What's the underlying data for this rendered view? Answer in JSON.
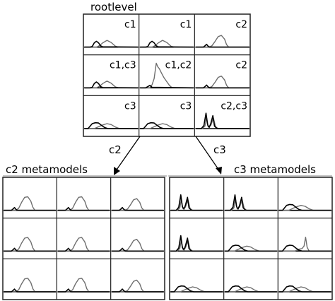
{
  "root": {
    "title": "rootlevel",
    "cells": [
      {
        "label": "c1",
        "dark": "smallBump",
        "light": "broadHump"
      },
      {
        "label": "c1",
        "dark": "smallBump",
        "light": "broadHump"
      },
      {
        "label": "c2",
        "dark": "tinyBump",
        "light": "tallHump"
      },
      {
        "label": "c1,c3",
        "dark": "smallBump",
        "light": "broadHump"
      },
      {
        "label": "c1,c2",
        "dark": "spikeBase",
        "light": "spikeTall"
      },
      {
        "label": "c2",
        "dark": "tinyBump",
        "light": "tallHump"
      },
      {
        "label": "c3",
        "dark": "wideBlob",
        "light": "lowTail"
      },
      {
        "label": "c3",
        "dark": "wideBlob",
        "light": "lowTail"
      },
      {
        "label": "c2,c3",
        "dark": "doubleSpike",
        "light": "doubleSpikeThin"
      }
    ]
  },
  "arrows": {
    "left_label": "c2",
    "right_label": "c3"
  },
  "c2_group": {
    "title": "c2 metamodels",
    "cells": [
      {
        "dark": "tinyBump",
        "light": "tallHump2"
      },
      {
        "dark": "tinyBump",
        "light": "tallHump2"
      },
      {
        "dark": "tinyBump",
        "light": "tallHump"
      },
      {
        "dark": "tinyBump",
        "light": "tallHump2"
      },
      {
        "dark": "tinyBump",
        "light": "tallHump2"
      },
      {
        "dark": "tinyBump",
        "light": "tallHump"
      },
      {
        "dark": "tinyBump",
        "light": "tallHump2"
      },
      {
        "dark": "tinyBump",
        "light": "tallHump2"
      },
      {
        "dark": "tinyBump",
        "light": "tallHump"
      }
    ]
  },
  "c3_group": {
    "title": "c3 metamodels",
    "cells": [
      {
        "dark": "doubleSpike",
        "light": "doubleSpikeThin"
      },
      {
        "dark": "doubleSpike",
        "light": "doubleSpikeThin"
      },
      {
        "dark": "wideBlob",
        "light": "lowTail"
      },
      {
        "dark": "doubleSpike",
        "light": "doubleSpikeThin"
      },
      {
        "dark": "wideBlob",
        "light": "lowTail"
      },
      {
        "dark": "wideBlob",
        "light": "singleSpike"
      },
      {
        "dark": "wideBlob",
        "light": "lowTail"
      },
      {
        "dark": "wideBlob",
        "light": "lowTail"
      },
      {
        "dark": "wideBlob",
        "light": "lowTail"
      }
    ]
  },
  "colors": {
    "dark": "#000000",
    "light": "#6e6e6e"
  }
}
